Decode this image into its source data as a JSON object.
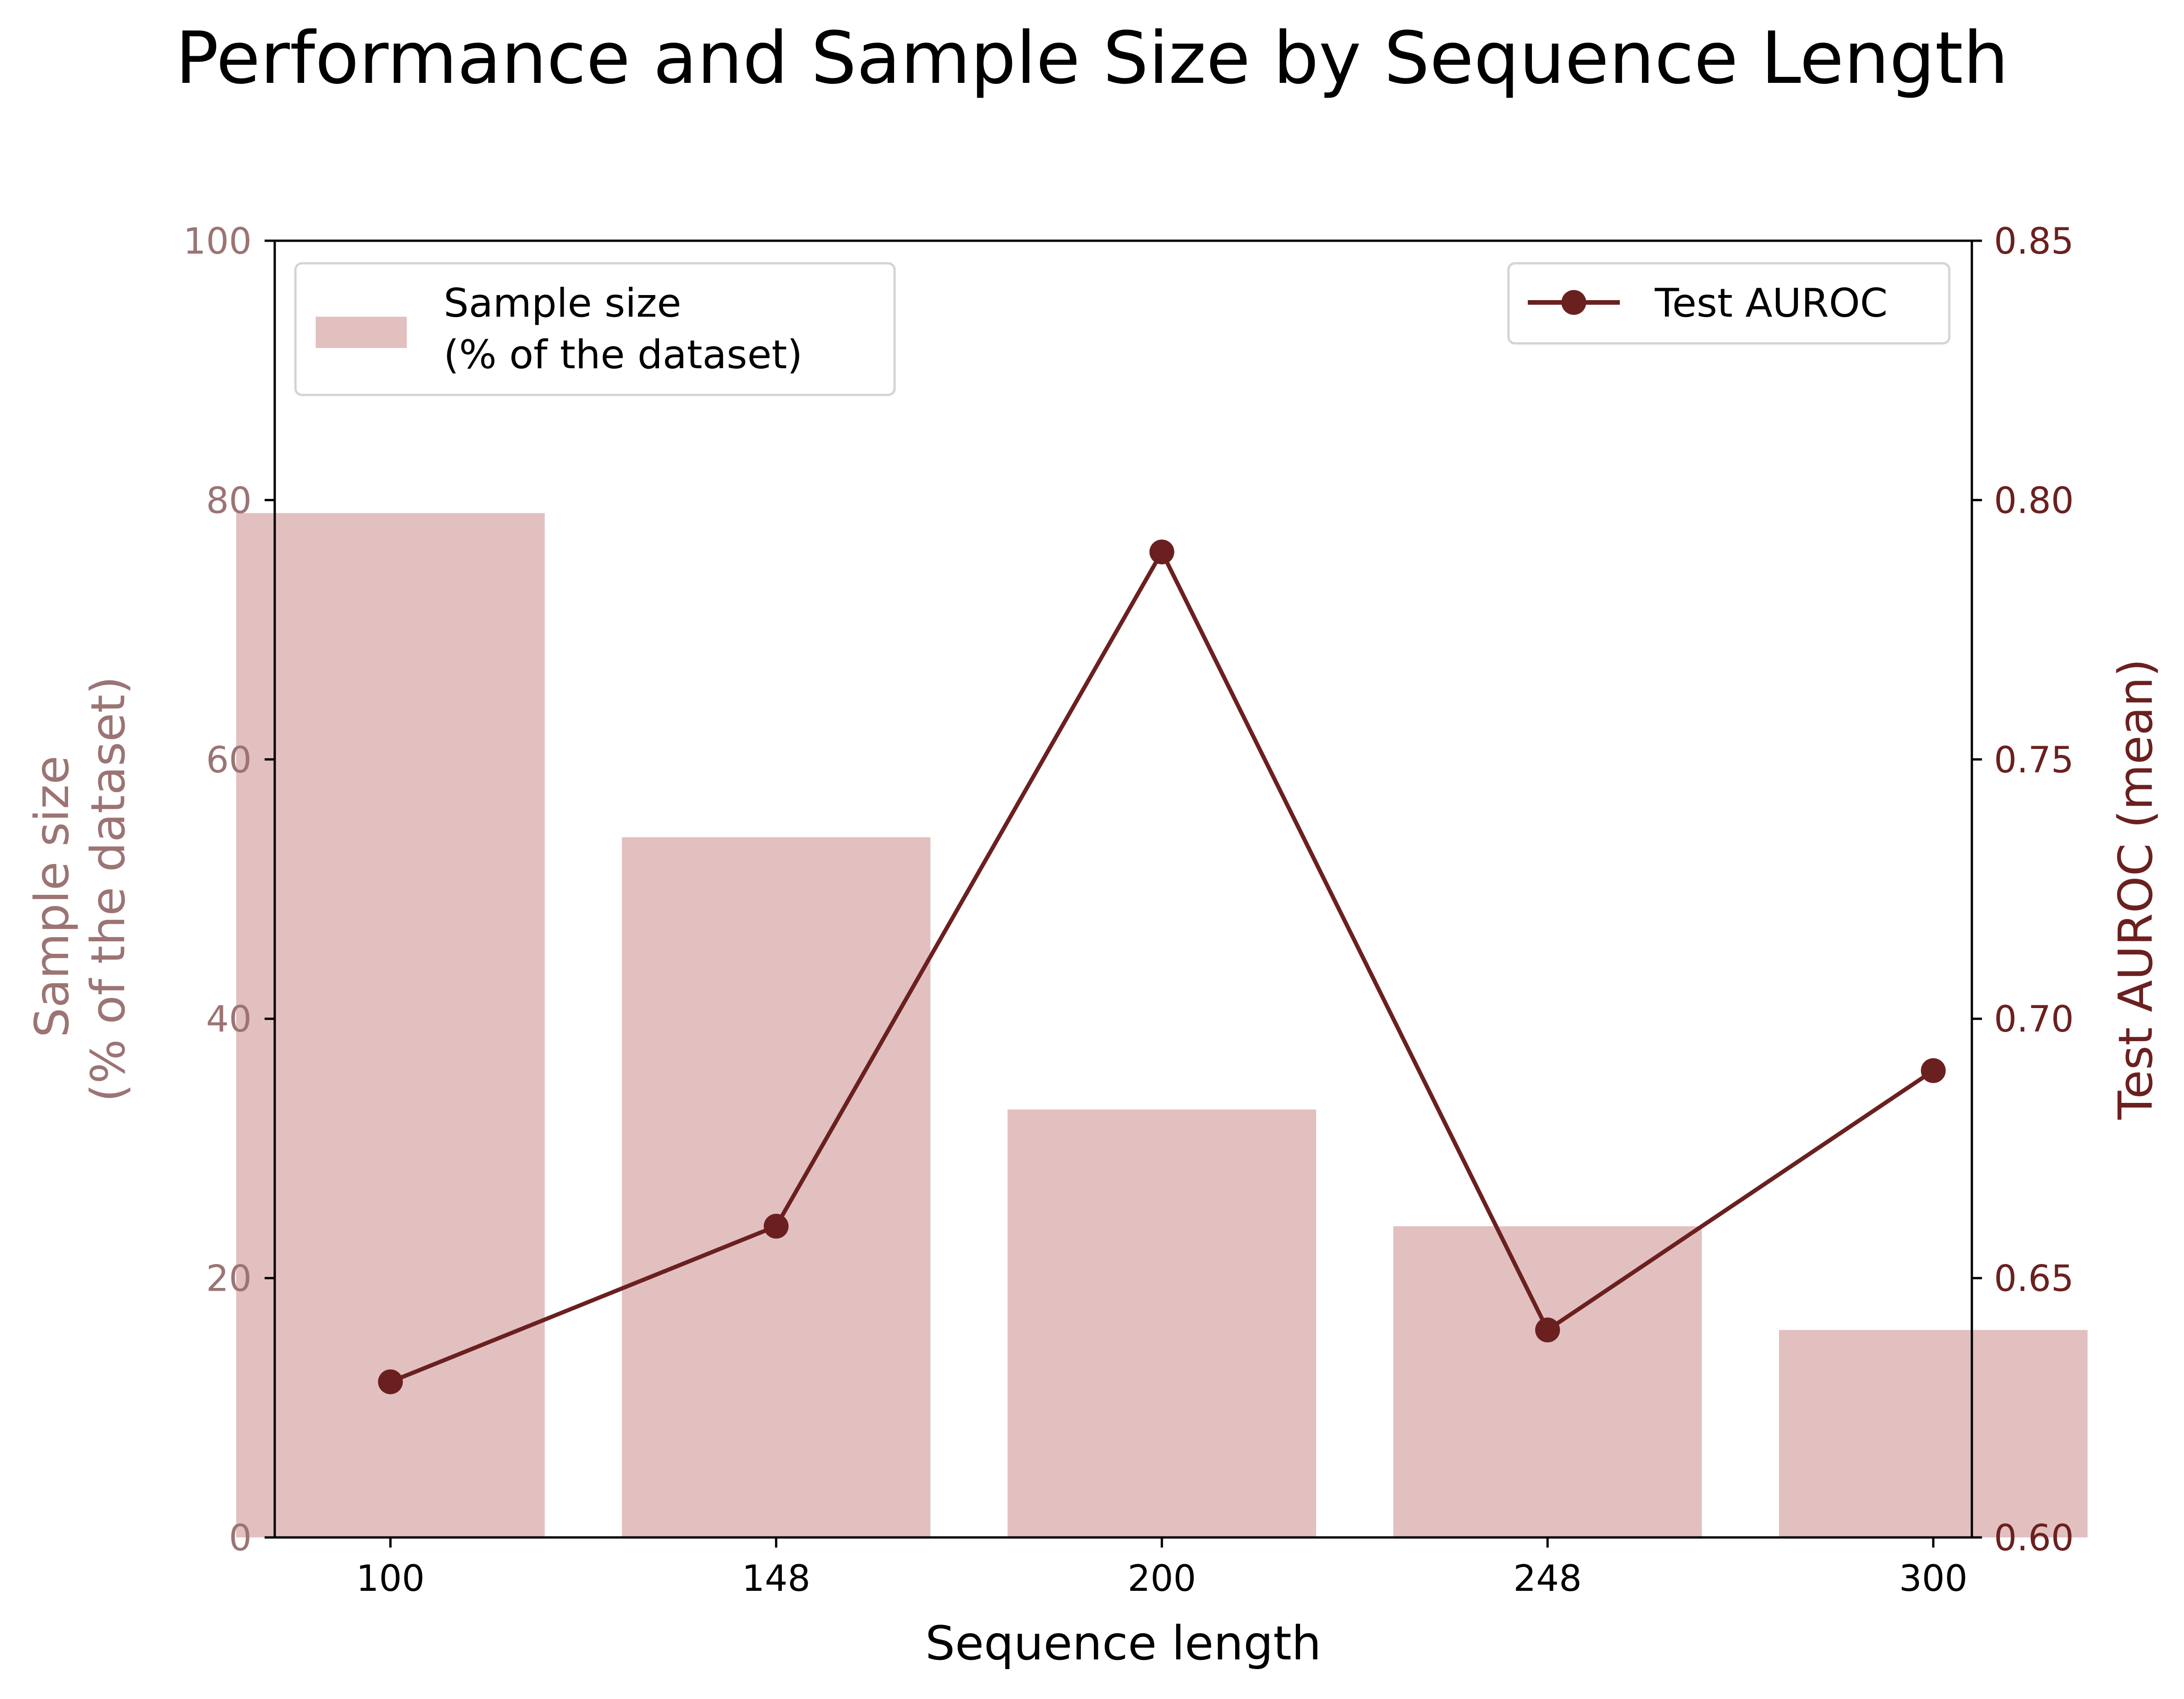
{
  "chart_data": {
    "type": "bar+line",
    "title": "Performance and Sample Size by Sequence Length",
    "xlabel": "Sequence length",
    "categories": [
      "100",
      "148",
      "200",
      "248",
      "300"
    ],
    "series": [
      {
        "name": "Sample size\n (% of the dataset)",
        "kind": "bar",
        "axis": "left",
        "values": [
          79,
          54,
          33,
          24,
          16
        ],
        "color": "#e2c0c0"
      },
      {
        "name": "Test AUROC",
        "kind": "line",
        "axis": "right",
        "marker": "circle",
        "values": [
          0.63,
          0.66,
          0.79,
          0.64,
          0.69
        ],
        "color": "#6b2020"
      }
    ],
    "y_left": {
      "label_lines": [
        "Sample size",
        "(% of the dataset)"
      ],
      "ylim": [
        0,
        100
      ],
      "ticks": [
        0,
        20,
        40,
        60,
        80,
        100
      ],
      "color": "#9c7474"
    },
    "y_right": {
      "label": "Test AUROC (mean)",
      "ylim": [
        0.6,
        0.85
      ],
      "ticks": [
        "0.60",
        "0.65",
        "0.70",
        "0.75",
        "0.80",
        "0.85"
      ],
      "color": "#6b2020"
    },
    "legend_bar_position": "top-left",
    "legend_line_position": "top-right",
    "grid": false
  }
}
